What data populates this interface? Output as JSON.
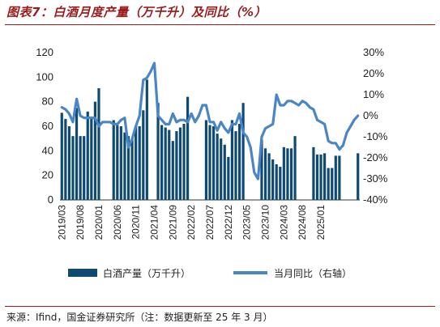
{
  "title": "图表7：白酒月度产量（万千升）及同比（%）",
  "source": "来源：Ifind，国金证券研究所（注：数据更新至 25 年 3 月）",
  "colors": {
    "bar": "#0e4a72",
    "line": "#4a86c5",
    "accent": "#9b1c1c"
  },
  "chart_data": {
    "type": "bar",
    "x_tick_labels": [
      "2019/03",
      "2019/08",
      "2020/01",
      "2020/06",
      "2020/11",
      "2021/04",
      "2021/09",
      "2022/02",
      "2022/07",
      "2022/12",
      "2023/05",
      "2023/10",
      "2024/03",
      "2024/08",
      "2025/01"
    ],
    "y_left": {
      "ticks": [
        0,
        20,
        40,
        60,
        80,
        100,
        120
      ],
      "ylim": [
        0,
        120
      ]
    },
    "y_right": {
      "ticks": [
        "30%",
        "20%",
        "10%",
        "0%",
        "-10%",
        "-20%",
        "-30%",
        "-40%"
      ],
      "ylim": [
        -40,
        30
      ]
    },
    "grid": false,
    "legend_position": "bottom",
    "series": [
      {
        "name": "白酒产量（万千升）",
        "type": "bar",
        "axis": "left",
        "values": [
          71,
          66,
          60,
          52,
          75,
          52,
          52,
          72,
          68,
          80,
          91,
          null,
          null,
          null,
          65,
          61,
          60,
          55,
          52,
          50,
          60,
          60,
          73,
          98,
          null,
          null,
          79,
          61,
          59,
          57,
          48,
          56,
          59,
          62,
          84,
          null,
          null,
          null,
          null,
          65,
          61,
          60,
          54,
          50,
          45,
          35,
          65,
          56,
          62,
          79,
          null,
          null,
          null,
          null,
          49,
          42,
          38,
          33,
          29,
          27,
          43,
          42,
          42,
          52,
          null,
          null,
          null,
          null,
          43,
          37,
          37,
          38,
          26,
          26,
          36,
          36,
          null,
          null,
          null,
          null,
          38
        ]
      },
      {
        "name": "当月同比（右轴）",
        "type": "line",
        "axis": "right",
        "values": [
          4,
          3,
          1,
          -3,
          8,
          0,
          -1,
          -1,
          -1,
          -1,
          -5,
          -3,
          -3,
          -3,
          -4,
          -4,
          -2,
          -1,
          -15,
          -11,
          -5,
          0,
          17,
          18,
          21,
          25,
          0,
          -2,
          -4,
          -4,
          1,
          -3,
          -2,
          -2,
          -3,
          1,
          -3,
          0,
          5,
          5,
          -3,
          -3,
          -7,
          -3,
          -6,
          -8,
          -4,
          -4,
          1,
          -8,
          -10,
          -15,
          -27,
          -30,
          -10,
          -6,
          -5,
          -4,
          10,
          5,
          5,
          7,
          7,
          6,
          5,
          7,
          6,
          4,
          3,
          -2,
          -3,
          -4,
          -12,
          -13,
          -13,
          -16,
          -14,
          -8,
          -5,
          -2,
          0
        ]
      }
    ]
  }
}
